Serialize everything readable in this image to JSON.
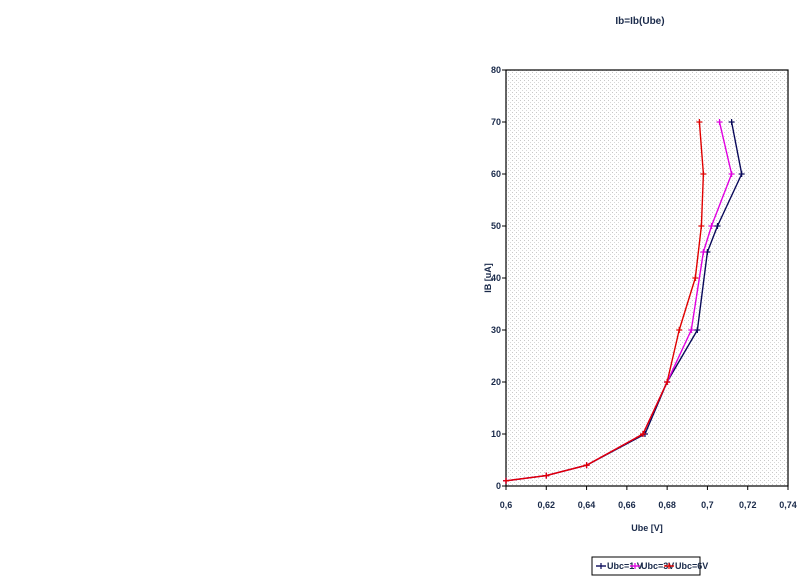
{
  "chart_data": {
    "type": "line",
    "title": "Ib=Ib(Ube)",
    "xlabel": "Ube [V]",
    "ylabel": "IB [uA]",
    "xlim": [
      0.6,
      0.74
    ],
    "ylim": [
      0,
      80
    ],
    "xticks": [
      0.6,
      0.62,
      0.64,
      0.66,
      0.68,
      0.7,
      0.72,
      0.74
    ],
    "xtick_labels": [
      "0,6",
      "0,62",
      "0,64",
      "0,66",
      "0,68",
      "0,7",
      "0,72",
      "0,74"
    ],
    "yticks": [
      0,
      10,
      20,
      30,
      40,
      50,
      60,
      70,
      80
    ],
    "ytick_labels": [
      "0",
      "10",
      "20",
      "30",
      "40",
      "50",
      "60",
      "70",
      "80"
    ],
    "grid": true,
    "legend_position": "bottom",
    "series": [
      {
        "name": "Ubc=1 V",
        "color": "#0a0a5a",
        "x": [
          0.6,
          0.62,
          0.64,
          0.669,
          0.68,
          0.695,
          0.7,
          0.705,
          0.717,
          0.712
        ],
        "y": [
          1,
          2,
          4,
          10,
          20,
          30,
          45,
          50,
          60,
          70
        ]
      },
      {
        "name": "Ubc=3V",
        "color": "#e000e0",
        "x": [
          0.6,
          0.62,
          0.64,
          0.668,
          0.68,
          0.692,
          0.698,
          0.702,
          0.712,
          0.706
        ],
        "y": [
          1,
          2,
          4,
          10,
          20,
          30,
          45,
          50,
          60,
          70
        ]
      },
      {
        "name": "Ubc=6V",
        "color": "#e00000",
        "x": [
          0.6,
          0.62,
          0.64,
          0.668,
          0.68,
          0.686,
          0.694,
          0.697,
          0.698,
          0.696
        ],
        "y": [
          1,
          2,
          4,
          10,
          20,
          30,
          40,
          50,
          60,
          70
        ]
      }
    ]
  }
}
